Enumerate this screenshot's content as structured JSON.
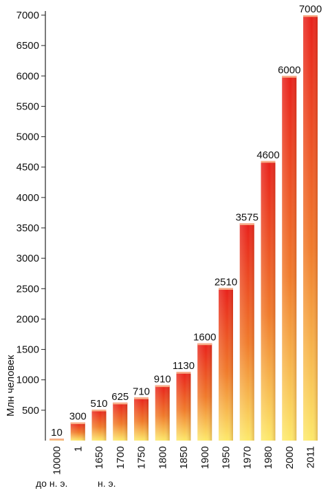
{
  "chart_data": {
    "type": "bar",
    "ylabel": "Млн человек",
    "ylim": [
      0,
      7000
    ],
    "yticks": [
      500,
      1000,
      1500,
      2000,
      2500,
      3000,
      3500,
      4000,
      4500,
      5000,
      5500,
      6000,
      6500,
      7000
    ],
    "categories": [
      "10000",
      "1",
      "1650",
      "1700",
      "1750",
      "1800",
      "1850",
      "1900",
      "1950",
      "1970",
      "1980",
      "2000",
      "2011"
    ],
    "values": [
      10,
      300,
      510,
      625,
      710,
      910,
      1130,
      1600,
      2510,
      3575,
      4600,
      6000,
      7000
    ],
    "value_labels": [
      "10",
      "300",
      "510",
      "625",
      "710",
      "910",
      "1130",
      "1600",
      "2510",
      "3575",
      "4600",
      "6000",
      "7000"
    ],
    "era_labels": {
      "bc": "до н. э.",
      "ad": "н. э."
    },
    "colors": {
      "bar_top": "#e8201a",
      "bar_mid": "#f07a2a",
      "bar_bottom": "#fde96a",
      "axis": "#222222"
    },
    "grid": false
  }
}
